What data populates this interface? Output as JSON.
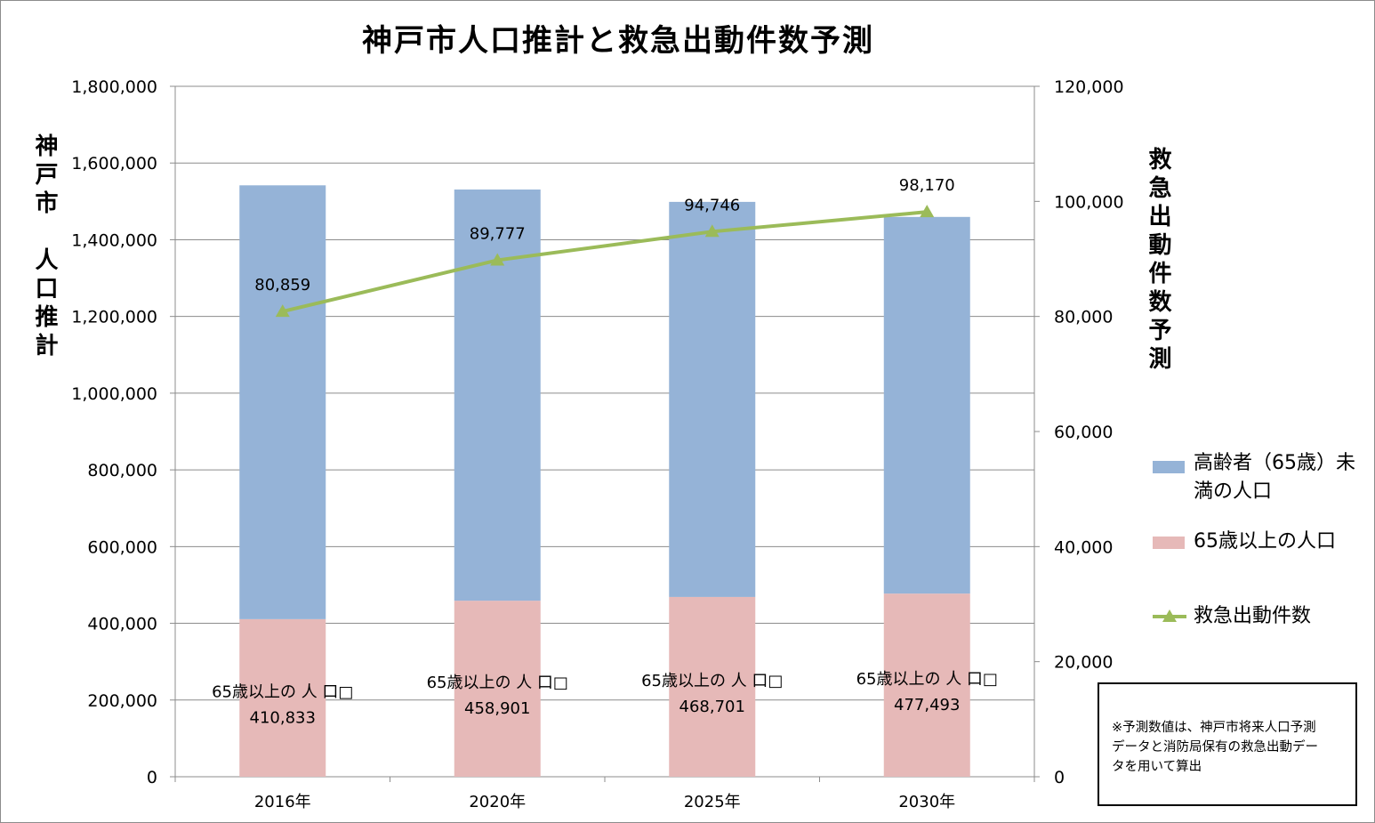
{
  "chart_data": {
    "type": "bar",
    "stacked": true,
    "title": "神戸市人口推計と救急出動件数予測",
    "ylabel": "神戸市　人口推計",
    "y2label": "救急出動件数予測",
    "categories": [
      "2016年",
      "2020年",
      "2025年",
      "2030年"
    ],
    "ylim": [
      0,
      1800000
    ],
    "y2lim": [
      0,
      120000
    ],
    "yticks": [
      "0",
      "200,000",
      "400,000",
      "600,000",
      "800,000",
      "1,000,000",
      "1,200,000",
      "1,400,000",
      "1,600,000",
      "1,800,000"
    ],
    "y2ticks": [
      "0",
      "20,000",
      "40,000",
      "60,000",
      "80,000",
      "100,000",
      "120,000"
    ],
    "grid": true,
    "legend_position": "right",
    "series": [
      {
        "name": "65歳以上の人口",
        "type": "bar",
        "axis": "left",
        "color": "#e6b9b8",
        "values": [
          410833,
          458901,
          468701,
          477493
        ],
        "data_labels": [
          "410,833",
          "458,901",
          "468,701",
          "477,493"
        ],
        "label_prefix": "65歳以上の 人 口"
      },
      {
        "name": "高齢者（65歳）未満の人口",
        "type": "bar",
        "axis": "left",
        "color": "#95b3d7",
        "values": [
          1131000,
          1072000,
          1030000,
          982000
        ]
      },
      {
        "name": "救急出動件数",
        "type": "line",
        "axis": "right",
        "color": "#9bbb59",
        "marker": "triangle",
        "values": [
          80859,
          89777,
          94746,
          98170
        ],
        "data_labels": [
          "80,859",
          "89,777",
          "94,746",
          "98,170"
        ]
      }
    ]
  },
  "legend": {
    "under65_line1": "高齢者（65歳）未",
    "under65_line2": "満の人口",
    "over65": "65歳以上の人口",
    "calls": "救急出動件数"
  },
  "note": {
    "line1": "※予測数値は、神戸市将来人口予測",
    "line2": "データと消防局保有の救急出動デー",
    "line3": "タを用いて算出"
  }
}
